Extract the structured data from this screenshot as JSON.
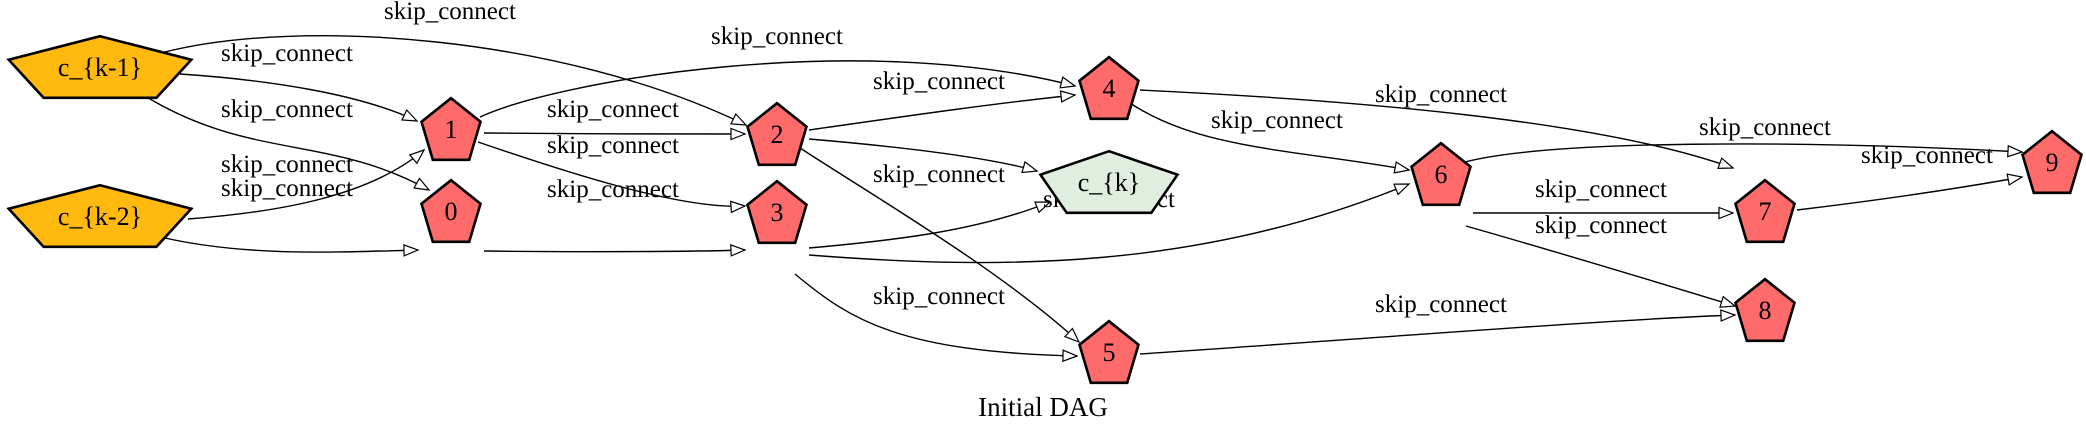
{
  "caption": "Initial DAG",
  "colors": {
    "input_node": "#FFB90F",
    "op_node": "#FF6A6A",
    "output_node": "#E0EEE0",
    "stroke": "#000000"
  },
  "nodes": [
    {
      "id": "ck1",
      "label": "c_{k-1}",
      "kind": "input"
    },
    {
      "id": "ck2",
      "label": "c_{k-2}",
      "kind": "input"
    },
    {
      "id": "n0",
      "label": "0",
      "kind": "op"
    },
    {
      "id": "n1",
      "label": "1",
      "kind": "op"
    },
    {
      "id": "n2",
      "label": "2",
      "kind": "op"
    },
    {
      "id": "n3",
      "label": "3",
      "kind": "op"
    },
    {
      "id": "n4",
      "label": "4",
      "kind": "op"
    },
    {
      "id": "n5",
      "label": "5",
      "kind": "op"
    },
    {
      "id": "n6",
      "label": "6",
      "kind": "op"
    },
    {
      "id": "n7",
      "label": "7",
      "kind": "op"
    },
    {
      "id": "n8",
      "label": "8",
      "kind": "op"
    },
    {
      "id": "n9",
      "label": "9",
      "kind": "op"
    },
    {
      "id": "ck",
      "label": "c_{k}",
      "kind": "output"
    }
  ],
  "edges": [
    {
      "from": "ck1",
      "to": "n1",
      "label": "skip_connect"
    },
    {
      "from": "ck1",
      "to": "n2",
      "label": "skip_connect"
    },
    {
      "from": "ck1",
      "to": "n0",
      "label": "skip_connect"
    },
    {
      "from": "ck2",
      "to": "n1",
      "label": "skip_connect"
    },
    {
      "from": "ck2",
      "to": "n0",
      "label": "skip_connect"
    },
    {
      "from": "n1",
      "to": "n4",
      "label": "skip_connect"
    },
    {
      "from": "n1",
      "to": "n2",
      "label": "skip_connect"
    },
    {
      "from": "n1",
      "to": "n3",
      "label": "skip_connect"
    },
    {
      "from": "n0",
      "to": "n3",
      "label": "skip_connect"
    },
    {
      "from": "n2",
      "to": "n4",
      "label": "skip_connect"
    },
    {
      "from": "n2",
      "to": "ck",
      "label": ""
    },
    {
      "from": "n2",
      "to": "n5",
      "label": "skip_connect"
    },
    {
      "from": "n3",
      "to": "ck",
      "label": ""
    },
    {
      "from": "n3",
      "to": "n6",
      "label": "skip_connect"
    },
    {
      "from": "n3",
      "to": "n5",
      "label": "skip_connect"
    },
    {
      "from": "n4",
      "to": "n7",
      "label": "skip_connect"
    },
    {
      "from": "n4",
      "to": "n6",
      "label": "skip_connect"
    },
    {
      "from": "n6",
      "to": "n9",
      "label": "skip_connect"
    },
    {
      "from": "n6",
      "to": "n7",
      "label": "skip_connect"
    },
    {
      "from": "n6",
      "to": "n8",
      "label": "skip_connect"
    },
    {
      "from": "n7",
      "to": "n9",
      "label": "skip_connect"
    },
    {
      "from": "n5",
      "to": "n8",
      "label": "skip_connect"
    }
  ]
}
